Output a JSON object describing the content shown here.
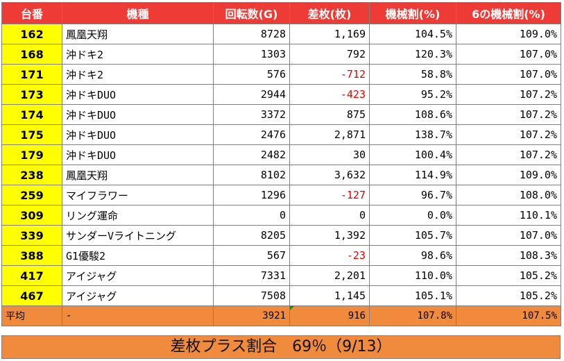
{
  "headers": {
    "machine_no": "台番",
    "model": "機種",
    "spins": "回転数(G)",
    "diff": "差枚(枚)",
    "payout": "機械割(%)",
    "setting6": "6の機械割(%)"
  },
  "rows": [
    {
      "no": "162",
      "model": "鳳凰天翔",
      "spins": "8728",
      "diff": "1,169",
      "negative": false,
      "payout": "104.5%",
      "setting6": "109.0%"
    },
    {
      "no": "168",
      "model": "沖ドキ2",
      "spins": "1303",
      "diff": "792",
      "negative": false,
      "payout": "120.3%",
      "setting6": "107.0%"
    },
    {
      "no": "171",
      "model": "沖ドキ2",
      "spins": "576",
      "diff": "-712",
      "negative": true,
      "payout": "58.8%",
      "setting6": "107.0%"
    },
    {
      "no": "173",
      "model": "沖ドキDUO",
      "spins": "2944",
      "diff": "-423",
      "negative": true,
      "payout": "95.2%",
      "setting6": "107.2%"
    },
    {
      "no": "174",
      "model": "沖ドキDUO",
      "spins": "3372",
      "diff": "875",
      "negative": false,
      "payout": "108.6%",
      "setting6": "107.2%"
    },
    {
      "no": "175",
      "model": "沖ドキDUO",
      "spins": "2476",
      "diff": "2,871",
      "negative": false,
      "payout": "138.7%",
      "setting6": "107.2%"
    },
    {
      "no": "179",
      "model": "沖ドキDUO",
      "spins": "2482",
      "diff": "30",
      "negative": false,
      "payout": "100.4%",
      "setting6": "107.2%"
    },
    {
      "no": "238",
      "model": "鳳凰天翔",
      "spins": "8102",
      "diff": "3,632",
      "negative": false,
      "payout": "114.9%",
      "setting6": "109.0%"
    },
    {
      "no": "259",
      "model": "マイフラワー",
      "spins": "1296",
      "diff": "-127",
      "negative": true,
      "payout": "96.7%",
      "setting6": "108.0%"
    },
    {
      "no": "309",
      "model": "リング運命",
      "spins": "0",
      "diff": "0",
      "negative": false,
      "payout": "0.0%",
      "setting6": "110.1%"
    },
    {
      "no": "339",
      "model": "サンダーVライトニング",
      "spins": "8205",
      "diff": "1,392",
      "negative": false,
      "payout": "105.7%",
      "setting6": "107.0%"
    },
    {
      "no": "388",
      "model": "G1優駿2",
      "spins": "567",
      "diff": "-23",
      "negative": true,
      "payout": "98.6%",
      "setting6": "108.3%"
    },
    {
      "no": "417",
      "model": "アイジャグ",
      "spins": "7331",
      "diff": "2,201",
      "negative": false,
      "payout": "110.0%",
      "setting6": "105.2%"
    },
    {
      "no": "467",
      "model": "アイジャグ",
      "spins": "7508",
      "diff": "1,145",
      "negative": false,
      "payout": "105.1%",
      "setting6": "105.2%"
    }
  ],
  "average": {
    "label": "平均",
    "model": "-",
    "spins": "3921",
    "diff": "916",
    "payout": "107.8%",
    "setting6": "107.5%"
  },
  "summary": {
    "text": "差枚プラス割合　69％（9/13）"
  },
  "colors": {
    "header_bg": "#ef3b36",
    "id_bg": "#ffff00",
    "avg_bg": "#f08a3c",
    "negative_text": "#e00000"
  }
}
